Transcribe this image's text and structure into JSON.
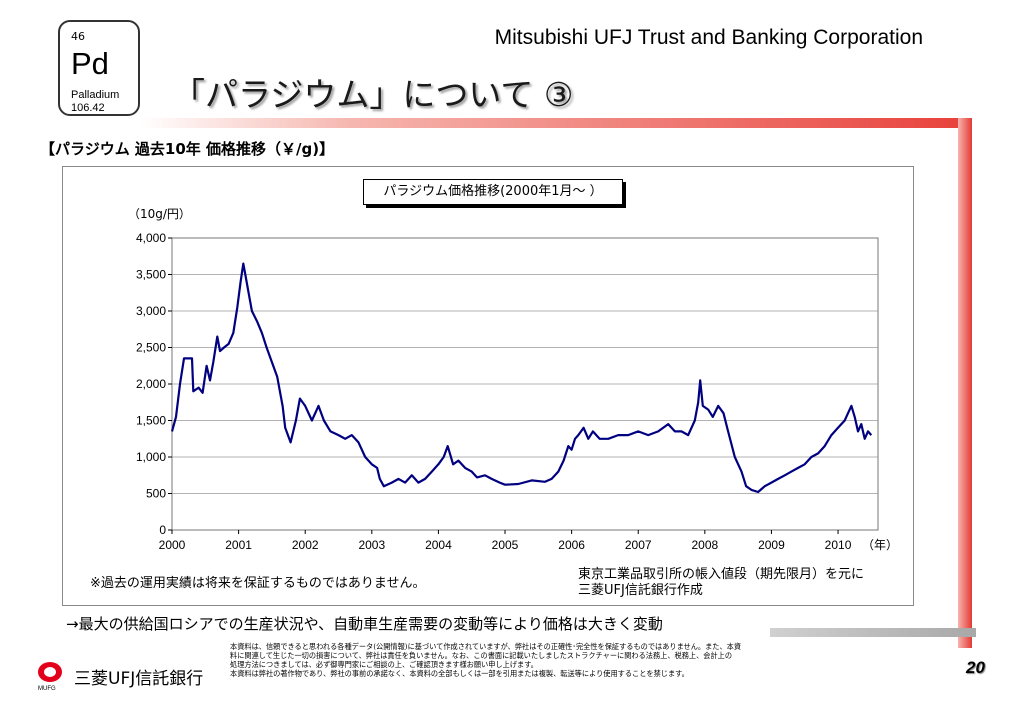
{
  "element": {
    "number": "46",
    "symbol": "Pd",
    "name": "Palladium",
    "weight": "106.42"
  },
  "header": {
    "company": "Mitsubishi UFJ Trust and Banking Corporation",
    "title": "「パラジウム」について ③"
  },
  "section_heading": "【パラジウム 過去10年 価格推移（￥/g)】",
  "chart_data": {
    "type": "line",
    "title": "パラジウム価格推移(2000年1月～ ）",
    "ylabel": "（10g/円）",
    "xlabel": "（年）",
    "ylim": [
      0,
      4000
    ],
    "yticks": [
      0,
      500,
      1000,
      1500,
      2000,
      2500,
      3000,
      3500,
      4000
    ],
    "ytick_labels": [
      "0",
      "500",
      "1,000",
      "1,500",
      "2,000",
      "2,500",
      "3,000",
      "3,500",
      "4,000"
    ],
    "xlim": [
      2000,
      2010.6
    ],
    "xticks": [
      2000,
      2001,
      2002,
      2003,
      2004,
      2005,
      2006,
      2007,
      2008,
      2009,
      2010
    ],
    "xtick_labels": [
      "2000",
      "2001",
      "2002",
      "2003",
      "2004",
      "2005",
      "2006",
      "2007",
      "2008",
      "2009",
      "2010"
    ],
    "grid": "horizontal",
    "line_color": "#000080",
    "series": [
      {
        "name": "",
        "points": [
          [
            2000.0,
            1350
          ],
          [
            2000.06,
            1550
          ],
          [
            2000.12,
            2000
          ],
          [
            2000.18,
            2350
          ],
          [
            2000.3,
            2350
          ],
          [
            2000.32,
            1900
          ],
          [
            2000.4,
            1950
          ],
          [
            2000.46,
            1880
          ],
          [
            2000.52,
            2250
          ],
          [
            2000.57,
            2050
          ],
          [
            2000.62,
            2300
          ],
          [
            2000.68,
            2650
          ],
          [
            2000.72,
            2450
          ],
          [
            2000.78,
            2500
          ],
          [
            2000.85,
            2550
          ],
          [
            2000.92,
            2700
          ],
          [
            2000.98,
            3050
          ],
          [
            2001.03,
            3400
          ],
          [
            2001.07,
            3650
          ],
          [
            2001.1,
            3500
          ],
          [
            2001.15,
            3250
          ],
          [
            2001.2,
            3000
          ],
          [
            2001.28,
            2850
          ],
          [
            2001.35,
            2700
          ],
          [
            2001.42,
            2500
          ],
          [
            2001.5,
            2300
          ],
          [
            2001.58,
            2100
          ],
          [
            2001.66,
            1700
          ],
          [
            2001.7,
            1400
          ],
          [
            2001.78,
            1200
          ],
          [
            2001.86,
            1500
          ],
          [
            2001.92,
            1800
          ],
          [
            2002.0,
            1700
          ],
          [
            2002.1,
            1500
          ],
          [
            2002.2,
            1700
          ],
          [
            2002.28,
            1500
          ],
          [
            2002.38,
            1350
          ],
          [
            2002.5,
            1300
          ],
          [
            2002.6,
            1250
          ],
          [
            2002.7,
            1300
          ],
          [
            2002.8,
            1200
          ],
          [
            2002.9,
            1000
          ],
          [
            2003.0,
            900
          ],
          [
            2003.08,
            850
          ],
          [
            2003.12,
            700
          ],
          [
            2003.18,
            600
          ],
          [
            2003.3,
            650
          ],
          [
            2003.4,
            700
          ],
          [
            2003.5,
            650
          ],
          [
            2003.6,
            750
          ],
          [
            2003.7,
            650
          ],
          [
            2003.8,
            700
          ],
          [
            2003.9,
            800
          ],
          [
            2004.0,
            900
          ],
          [
            2004.08,
            1000
          ],
          [
            2004.14,
            1150
          ],
          [
            2004.22,
            900
          ],
          [
            2004.3,
            950
          ],
          [
            2004.4,
            850
          ],
          [
            2004.5,
            800
          ],
          [
            2004.58,
            720
          ],
          [
            2004.7,
            750
          ],
          [
            2004.8,
            700
          ],
          [
            2004.92,
            650
          ],
          [
            2005.0,
            620
          ],
          [
            2005.2,
            630
          ],
          [
            2005.4,
            680
          ],
          [
            2005.6,
            660
          ],
          [
            2005.7,
            700
          ],
          [
            2005.8,
            800
          ],
          [
            2005.88,
            950
          ],
          [
            2005.95,
            1150
          ],
          [
            2006.0,
            1100
          ],
          [
            2006.05,
            1250
          ],
          [
            2006.1,
            1300
          ],
          [
            2006.18,
            1400
          ],
          [
            2006.25,
            1250
          ],
          [
            2006.32,
            1350
          ],
          [
            2006.42,
            1250
          ],
          [
            2006.55,
            1250
          ],
          [
            2006.7,
            1300
          ],
          [
            2006.85,
            1300
          ],
          [
            2007.0,
            1350
          ],
          [
            2007.15,
            1300
          ],
          [
            2007.3,
            1350
          ],
          [
            2007.45,
            1450
          ],
          [
            2007.55,
            1350
          ],
          [
            2007.65,
            1350
          ],
          [
            2007.75,
            1300
          ],
          [
            2007.85,
            1500
          ],
          [
            2007.9,
            1750
          ],
          [
            2007.93,
            2050
          ],
          [
            2007.97,
            1700
          ],
          [
            2008.05,
            1650
          ],
          [
            2008.12,
            1550
          ],
          [
            2008.2,
            1700
          ],
          [
            2008.28,
            1600
          ],
          [
            2008.35,
            1350
          ],
          [
            2008.45,
            1000
          ],
          [
            2008.55,
            800
          ],
          [
            2008.62,
            600
          ],
          [
            2008.7,
            550
          ],
          [
            2008.8,
            520
          ],
          [
            2008.9,
            600
          ],
          [
            2009.0,
            650
          ],
          [
            2009.1,
            700
          ],
          [
            2009.2,
            750
          ],
          [
            2009.3,
            800
          ],
          [
            2009.4,
            850
          ],
          [
            2009.5,
            900
          ],
          [
            2009.6,
            1000
          ],
          [
            2009.7,
            1050
          ],
          [
            2009.8,
            1150
          ],
          [
            2009.9,
            1300
          ],
          [
            2010.0,
            1400
          ],
          [
            2010.1,
            1500
          ],
          [
            2010.15,
            1600
          ],
          [
            2010.2,
            1700
          ],
          [
            2010.25,
            1550
          ],
          [
            2010.3,
            1350
          ],
          [
            2010.35,
            1450
          ],
          [
            2010.4,
            1250
          ],
          [
            2010.45,
            1350
          ],
          [
            2010.5,
            1300
          ]
        ]
      }
    ]
  },
  "notes": {
    "left": "※過去の運用実績は将来を保証するものではありません。",
    "right_line1": "東京工業品取引所の帳入値段（期先限月）を元に",
    "right_line2": "三菱UFJ信託銀行作成"
  },
  "conclusion": "→最大の供給国ロシアでの生産状況や、自動車生産需要の変動等により価格は大きく変動",
  "footer": {
    "mufg_mark": "MUFG",
    "bank_name": "三菱UFJ信託銀行",
    "disclaimer_lines": [
      "本資料は、信頼できると思われる各種データ(公開情報)に基づいて作成されていますが、弊社はその正確性･完全性を保証するものではありません。また、本資",
      "料に関連して生じた一切の損害について、弊社は責任を負いません。なお、この書面に記載いたしましたストラクチャーに関わる法務上、税務上、会計上の",
      "処理方法につきましては、必ず御専門家にご相談の上、ご確認頂きます様お願い申し上げます。",
      "本資料は弊社の著作物であり、弊社の事前の承諾なく、本資料の全部もしくは一部を引用または複製、転送等により使用することを禁じます。"
    ],
    "page_number": "20"
  },
  "colors": {
    "accent_red": "#e23a33",
    "line": "#000080"
  }
}
